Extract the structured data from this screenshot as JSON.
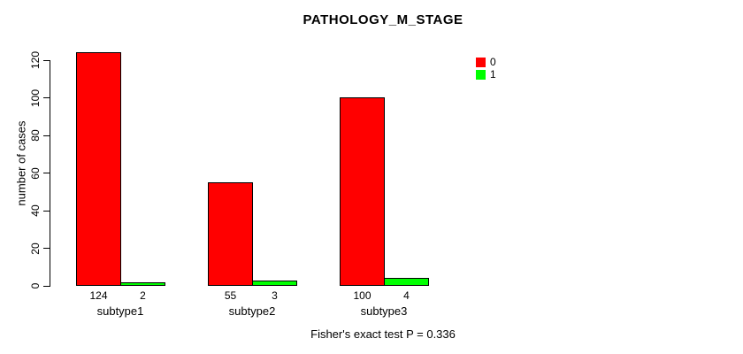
{
  "chart_data": {
    "type": "bar",
    "title": "PATHOLOGY_M_STAGE",
    "categories": [
      "subtype1",
      "subtype2",
      "subtype3"
    ],
    "series": [
      {
        "name": "0",
        "color": "#FF0000",
        "values": [
          124,
          55,
          100
        ]
      },
      {
        "name": "1",
        "color": "#00FF00",
        "values": [
          2,
          3,
          4
        ]
      }
    ],
    "xlabel": "",
    "ylabel": "number of cases",
    "ylim": [
      0,
      120
    ],
    "yticks": [
      0,
      20,
      40,
      60,
      80,
      100,
      120
    ],
    "bar_value_labels": true,
    "grid": false,
    "legend_position": "top-right",
    "annotation": "Fisher's exact test P = 0.336"
  }
}
